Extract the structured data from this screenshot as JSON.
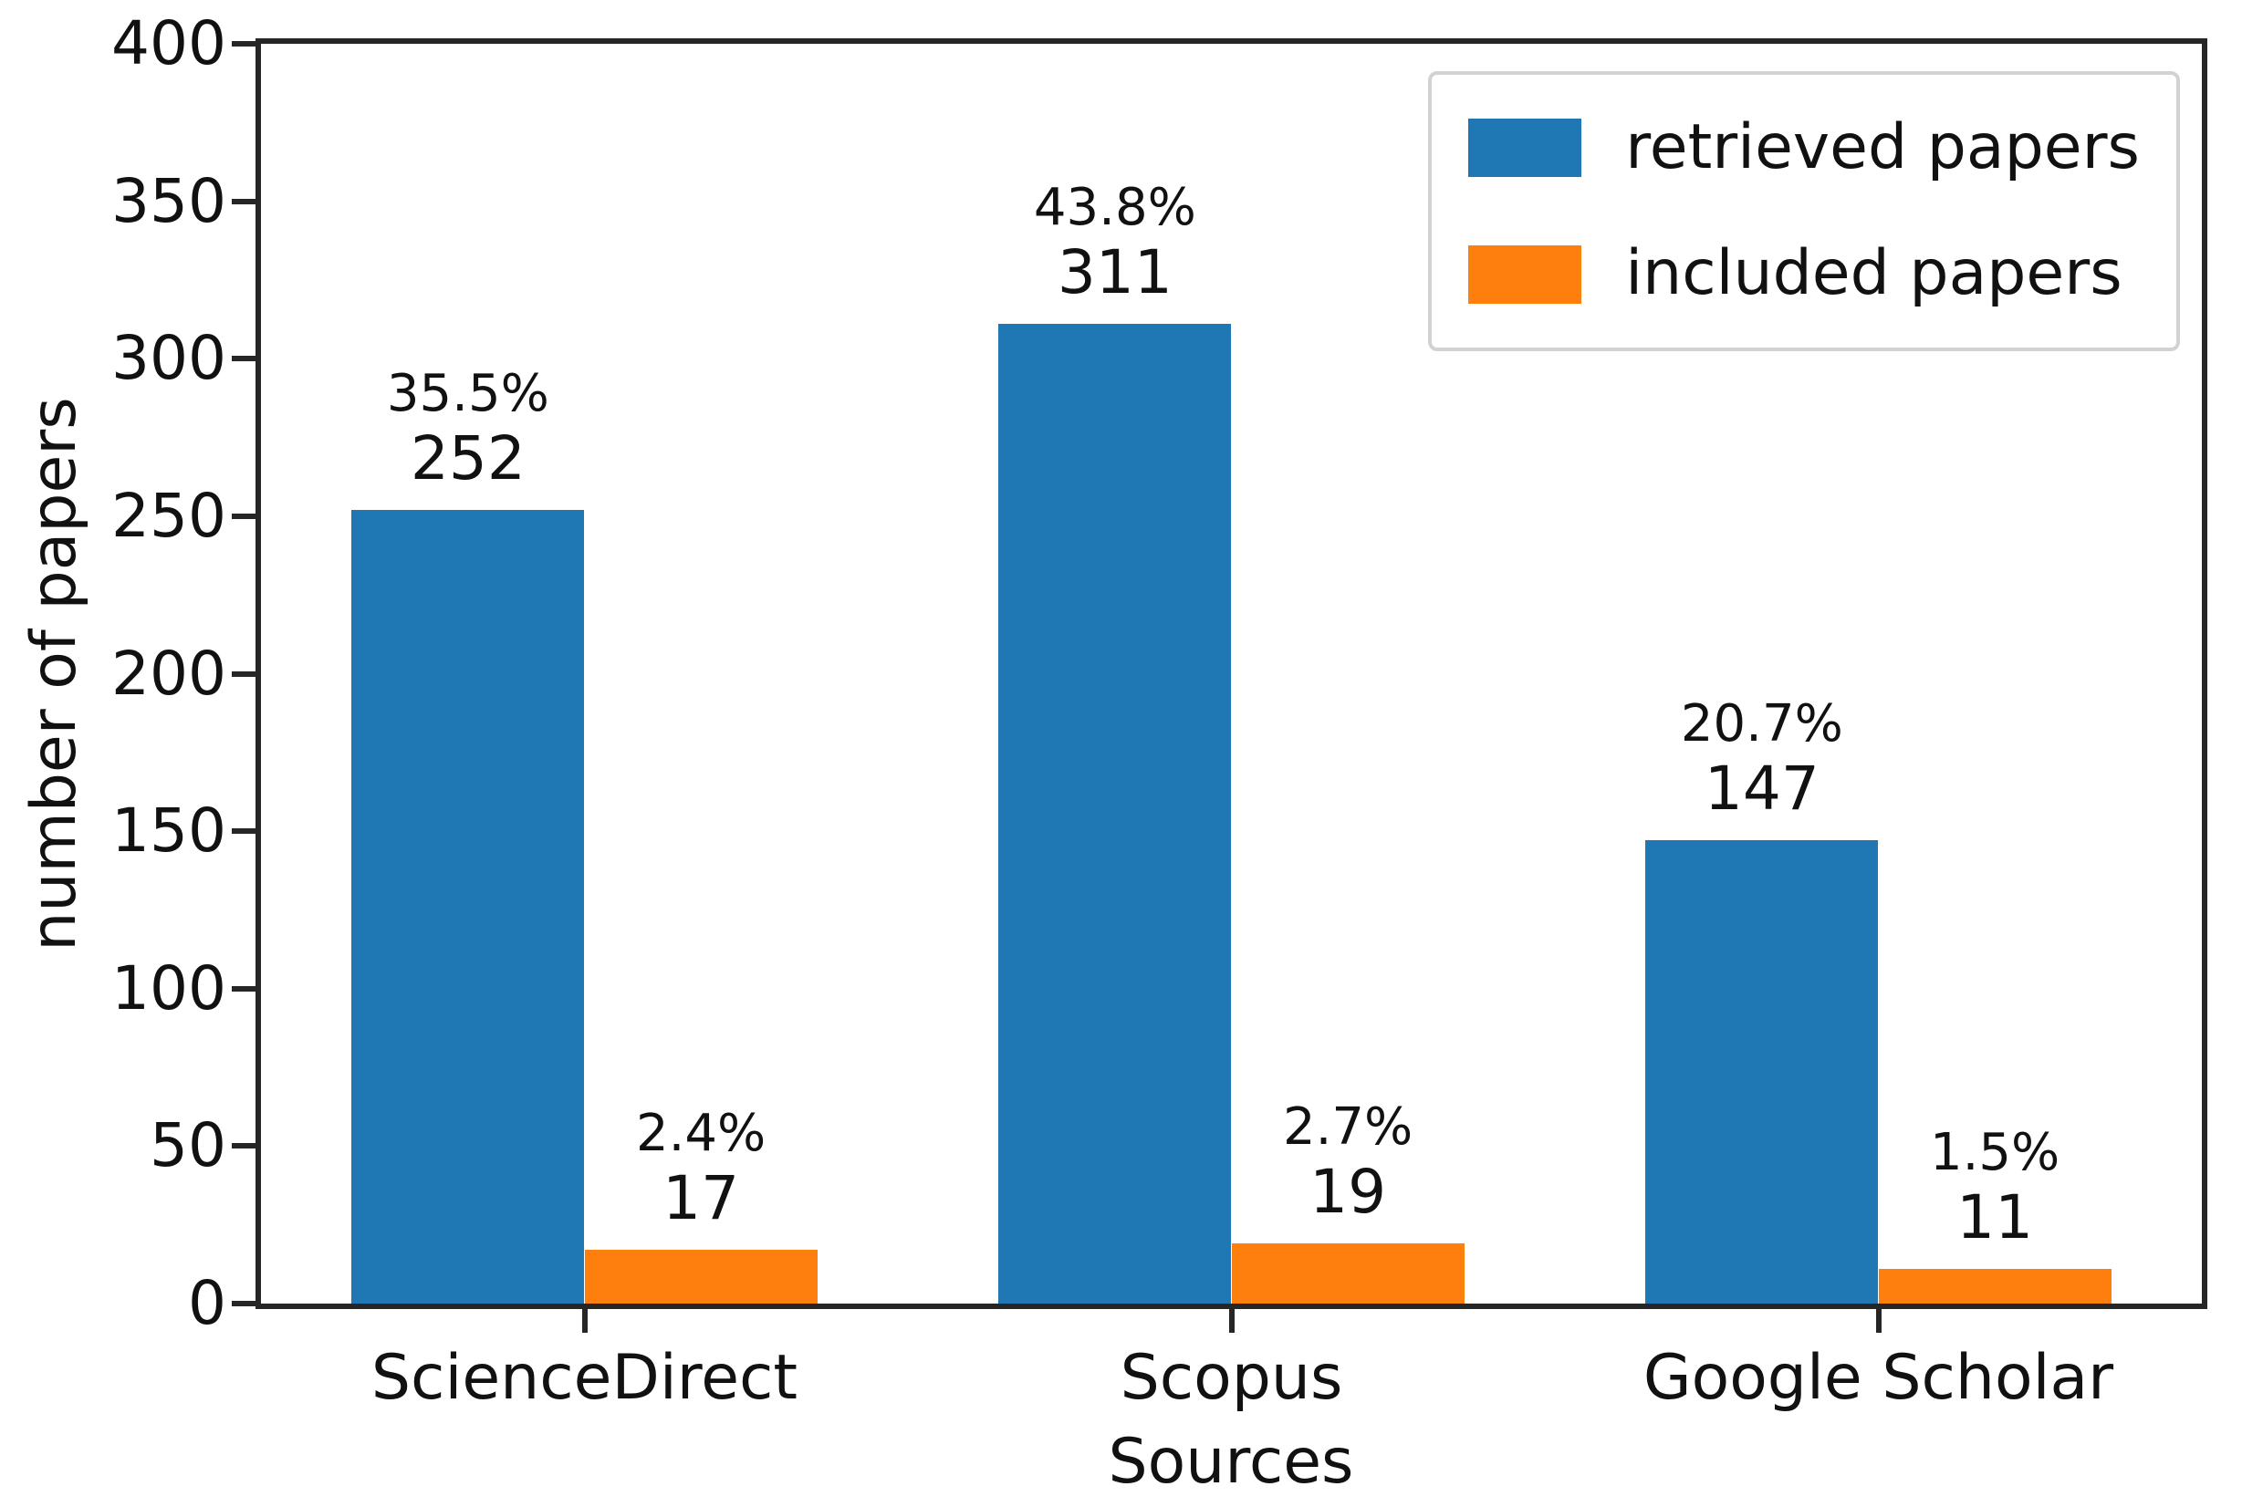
{
  "figure": {
    "background": "#ffffff",
    "axis_color": "#262626",
    "text_color": "#111111",
    "legend_border_color": "#d2d2d2"
  },
  "chart_data": {
    "type": "bar",
    "title": "",
    "xlabel": "Sources",
    "ylabel": "number of papers",
    "ylim": [
      0,
      400
    ],
    "ytick_step": 50,
    "yticks": [
      0,
      50,
      100,
      150,
      200,
      250,
      300,
      350,
      400
    ],
    "grid": false,
    "legend_position": "upper right",
    "categories": [
      "ScienceDirect",
      "Scopus",
      "Google Scholar"
    ],
    "series": [
      {
        "name": "retrieved papers",
        "color": "#1f77b4",
        "values": [
          252,
          311,
          147
        ],
        "percent_labels": [
          "35.5%",
          "43.8%",
          "20.7%"
        ]
      },
      {
        "name": "included papers",
        "color": "#ff7f0e",
        "values": [
          17,
          19,
          11
        ],
        "percent_labels": [
          "2.4%",
          "2.7%",
          "1.5%"
        ]
      }
    ]
  }
}
